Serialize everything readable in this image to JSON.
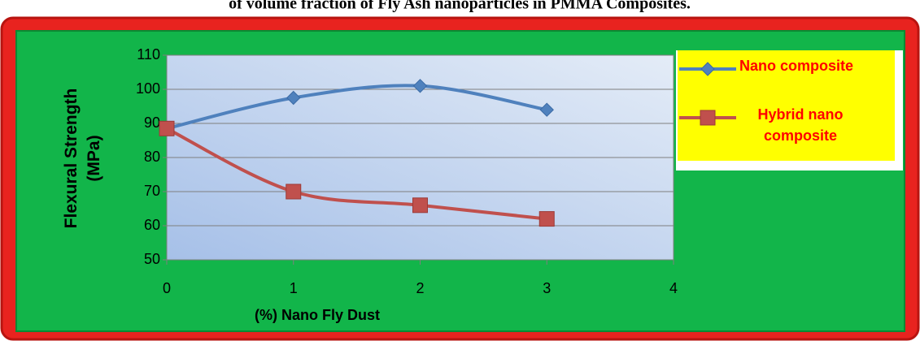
{
  "chart_data": {
    "type": "line",
    "title": "of volume fraction of Fly Ash nanoparticles in PMMA Composites.",
    "x": [
      0,
      1,
      2,
      3
    ],
    "series": [
      {
        "name": "Nano composite",
        "color": "#4f81bd",
        "marker": "diamond",
        "values": [
          88.5,
          97.5,
          101,
          94
        ]
      },
      {
        "name": "Hybrid nano composite",
        "color": "#c0504d",
        "marker": "square",
        "values": [
          88.5,
          70,
          66,
          62
        ]
      }
    ],
    "xlabel": "(%)  Nano  Fly  Dust",
    "ylabel": "Flexural Strength (MPa)",
    "xlim": [
      0,
      4
    ],
    "xticks": [
      0,
      1,
      2,
      3,
      4
    ],
    "ylim": [
      50,
      110
    ],
    "yticks": [
      50,
      60,
      70,
      80,
      90,
      100,
      110
    ],
    "grid": true,
    "smooth": true,
    "legend": "right"
  }
}
